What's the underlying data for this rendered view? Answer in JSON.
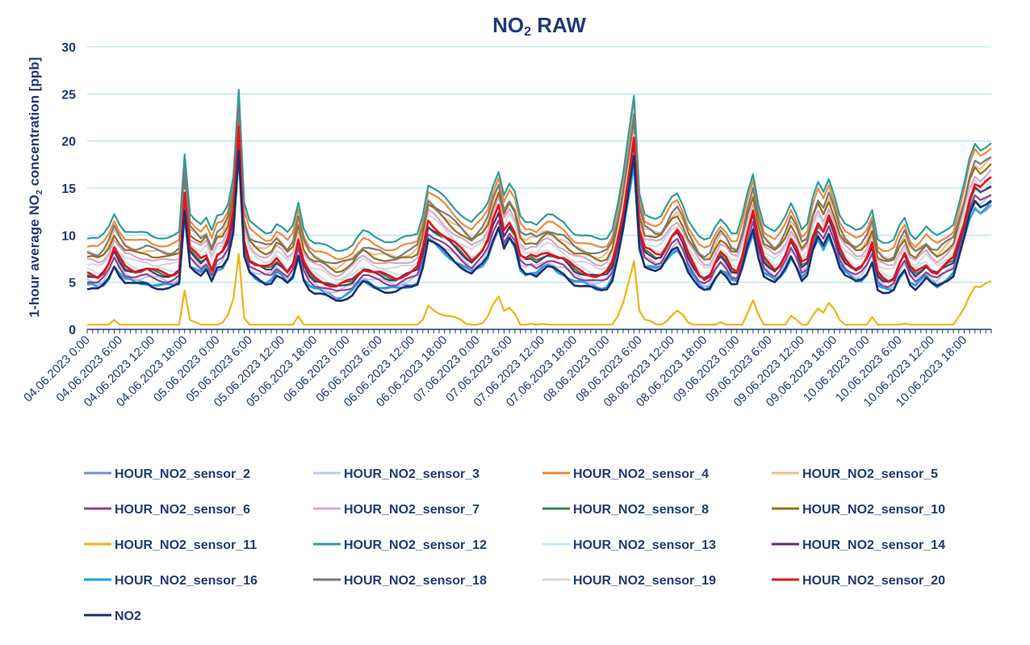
{
  "chart_data": {
    "type": "line",
    "title_main": "NO",
    "title_sub": "2",
    "title_rest": " RAW",
    "ylabel_pre": "1-hour average NO",
    "ylabel_sub": "2",
    "ylabel_post": " concentration [ppb]",
    "xlabel": "",
    "ylim": [
      0,
      30
    ],
    "yticks": [
      0,
      5,
      10,
      15,
      20,
      25,
      30
    ],
    "grid": true,
    "legend_position": "bottom",
    "x_start": "04.06.2023 0:00",
    "x_step_hours": 1,
    "n_points": 168,
    "x_tick_labels": [
      "04.06.2023 0:00",
      "04.06.2023 6:00",
      "04.06.2023 12:00",
      "04.06.2023 18:00",
      "05.06.2023 0:00",
      "05.06.2023 6:00",
      "05.06.2023 12:00",
      "05.06.2023 18:00",
      "06.06.2023 0:00",
      "06.06.2023 6:00",
      "06.06.2023 12:00",
      "06.06.2023 18:00",
      "07.06.2023 0:00",
      "07.06.2023 6:00",
      "07.06.2023 12:00",
      "07.06.2023 18:00",
      "08.06.2023 0:00",
      "08.06.2023 6:00",
      "08.06.2023 12:00",
      "08.06.2023 18:00",
      "09.06.2023 0:00",
      "09.06.2023 6:00",
      "09.06.2023 12:00",
      "09.06.2023 18:00",
      "10.06.2023 0:00",
      "10.06.2023 6:00",
      "10.06.2023 12:00",
      "10.06.2023 18:00"
    ],
    "x_tick_every_hours": 6,
    "series": [
      {
        "name": "HOUR_NO2_sensor_2",
        "color": "#6f8fdc",
        "offset": 0.0,
        "scale": 0.86
      },
      {
        "name": "HOUR_NO2_sensor_3",
        "color": "#b8cbee",
        "offset": 0.4,
        "scale": 0.88
      },
      {
        "name": "HOUR_NO2_sensor_4",
        "color": "#ed8a3c",
        "offset": 3.2,
        "scale": 1.05
      },
      {
        "name": "HOUR_NO2_sensor_5",
        "color": "#f5b98a",
        "offset": 2.6,
        "scale": 1.0
      },
      {
        "name": "HOUR_NO2_sensor_6",
        "color": "#9b3d8f",
        "offset": 0.2,
        "scale": 0.92
      },
      {
        "name": "HOUR_NO2_sensor_7",
        "color": "#d6a6d6",
        "offset": 2.0,
        "scale": 0.96
      },
      {
        "name": "HOUR_NO2_sensor_8",
        "color": "#2f8a52",
        "offset": 0.8,
        "scale": 0.93
      },
      {
        "name": "HOUR_NO2_sensor_10",
        "color": "#9a6e12",
        "offset": 2.2,
        "scale": 1.0
      },
      {
        "name": "HOUR_NO2_sensor_11",
        "color": "#f2b311",
        "offset": -3.6,
        "scale": 0.55
      },
      {
        "name": "HOUR_NO2_sensor_12",
        "color": "#2e9c9c",
        "offset": 4.2,
        "scale": 1.02
      },
      {
        "name": "HOUR_NO2_sensor_13",
        "color": "#c9e4ee",
        "offset": 1.2,
        "scale": 0.92
      },
      {
        "name": "HOUR_NO2_sensor_14",
        "color": "#5a2e6e",
        "offset": 0.6,
        "scale": 0.95
      },
      {
        "name": "HOUR_NO2_sensor_16",
        "color": "#1aa6e0",
        "offset": -0.2,
        "scale": 0.88
      },
      {
        "name": "HOUR_NO2_sensor_18",
        "color": "#7a7a7a",
        "offset": 2.8,
        "scale": 1.0
      },
      {
        "name": "HOUR_NO2_sensor_19",
        "color": "#d9d9d9",
        "offset": 1.6,
        "scale": 0.95
      },
      {
        "name": "HOUR_NO2_sensor_20",
        "color": "#ee1111",
        "offset": 0.5,
        "scale": 1.0
      },
      {
        "name": "NO2",
        "color": "#1b2f6e",
        "offset": -0.8,
        "scale": 0.95
      }
    ],
    "base_profile": [
      5.5,
      5.4,
      5.2,
      5.6,
      6.5,
      8.0,
      7.0,
      6.2,
      6.0,
      5.8,
      5.8,
      5.9,
      5.7,
      5.6,
      5.5,
      5.4,
      5.5,
      5.8,
      14.0,
      8.0,
      7.5,
      7.0,
      7.5,
      6.0,
      7.5,
      7.8,
      9.0,
      12.0,
      21.0,
      9.0,
      7.0,
      6.5,
      6.2,
      6.0,
      6.2,
      7.0,
      6.5,
      5.8,
      6.5,
      9.0,
      6.5,
      5.5,
      5.0,
      4.8,
      4.5,
      4.2,
      4.0,
      4.2,
      4.5,
      4.8,
      5.5,
      6.0,
      5.8,
      5.5,
      5.4,
      5.2,
      5.1,
      5.0,
      5.2,
      5.4,
      5.6,
      6.0,
      8.0,
      11.0,
      10.5,
      10.0,
      9.5,
      9.0,
      8.5,
      8.0,
      7.5,
      7.0,
      7.5,
      8.0,
      9.0,
      11.0,
      12.5,
      10.0,
      11.0,
      10.0,
      7.5,
      7.0,
      7.2,
      7.0,
      7.5,
      7.8,
      7.6,
      7.2,
      7.0,
      6.5,
      6.0,
      5.8,
      5.6,
      5.4,
      5.2,
      5.2,
      5.5,
      6.5,
      9.0,
      12.0,
      16.0,
      20.0,
      10.0,
      8.0,
      7.8,
      7.5,
      7.6,
      8.5,
      9.5,
      10.0,
      9.0,
      7.5,
      6.5,
      5.5,
      5.0,
      5.2,
      6.5,
      7.5,
      7.0,
      6.0,
      5.8,
      7.5,
      10.0,
      12.0,
      9.0,
      7.0,
      6.5,
      6.0,
      6.5,
      7.5,
      9.0,
      8.0,
      6.5,
      7.0,
      9.5,
      11.0,
      10.0,
      11.5,
      10.0,
      8.0,
      7.0,
      6.5,
      6.0,
      6.2,
      7.0,
      8.5,
      5.5,
      5.0,
      4.8,
      5.0,
      6.5,
      7.5,
      6.0,
      5.5,
      6.0,
      6.5,
      5.8,
      5.5,
      6.0,
      6.5,
      7.0,
      9.0,
      11.0,
      13.5,
      15.0,
      14.5,
      15.0,
      15.5
    ],
    "legend_labels": [
      "HOUR_NO2_sensor_2",
      "HOUR_NO2_sensor_3",
      "HOUR_NO2_sensor_4",
      "HOUR_NO2_sensor_5",
      "HOUR_NO2_sensor_6",
      "HOUR_NO2_sensor_7",
      "HOUR_NO2_sensor_8",
      "HOUR_NO2_sensor_10",
      "HOUR_NO2_sensor_11",
      "HOUR_NO2_sensor_12",
      "HOUR_NO2_sensor_13",
      "HOUR_NO2_sensor_14",
      "HOUR_NO2_sensor_16",
      "HOUR_NO2_sensor_18",
      "HOUR_NO2_sensor_19",
      "HOUR_NO2_sensor_20",
      "NO2"
    ]
  }
}
